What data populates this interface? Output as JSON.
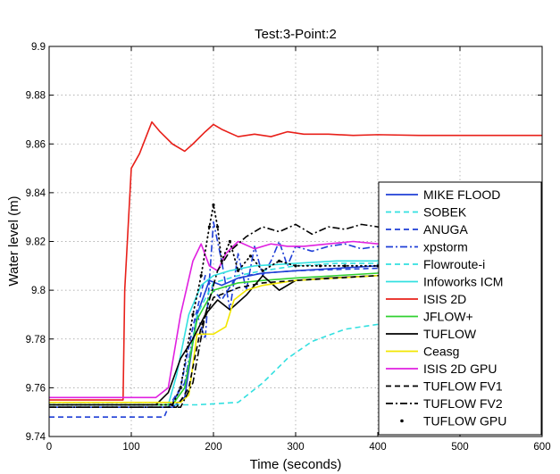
{
  "chart_data": {
    "type": "line",
    "title": "Test:3-Point:2",
    "xlabel": "Time (seconds)",
    "ylabel": "Water level (m)",
    "xlim": [
      0,
      600
    ],
    "ylim": [
      9.74,
      9.9
    ],
    "xticks": [
      "0",
      "100",
      "200",
      "300",
      "400",
      "500",
      "600"
    ],
    "yticks": [
      "9.74",
      "9.76",
      "9.78",
      "9.8",
      "9.82",
      "9.84",
      "9.86",
      "9.88",
      "9.9"
    ],
    "grid": true,
    "legend_position": "lower-right",
    "series": [
      {
        "name": "MIKE FLOOD",
        "color": "#1f3fd6",
        "dash": "solid",
        "x": [
          0,
          150,
          165,
          180,
          195,
          210,
          230,
          260,
          300,
          350,
          400,
          600
        ],
        "y": [
          9.752,
          9.752,
          9.756,
          9.79,
          9.804,
          9.802,
          9.805,
          9.807,
          9.808,
          9.809,
          9.81,
          9.812
        ]
      },
      {
        "name": "SOBEK",
        "color": "#33e0e0",
        "dash": "dash",
        "x": [
          0,
          150,
          180,
          230,
          260,
          290,
          320,
          360,
          400,
          440,
          500,
          600
        ],
        "y": [
          9.753,
          9.753,
          9.753,
          9.754,
          9.762,
          9.772,
          9.779,
          9.784,
          9.786,
          9.789,
          9.791,
          9.794
        ]
      },
      {
        "name": "ANUGA",
        "color": "#1f3fd6",
        "dash": "dash",
        "x": [
          0,
          140,
          145,
          160,
          175,
          190,
          200,
          210,
          225,
          240,
          260,
          300,
          400,
          600
        ],
        "y": [
          9.748,
          9.748,
          9.752,
          9.76,
          9.785,
          9.806,
          9.8,
          9.796,
          9.804,
          9.806,
          9.807,
          9.808,
          9.809,
          9.811
        ]
      },
      {
        "name": "xpstorm",
        "color": "#1f3fd6",
        "dash": "dashdot",
        "x": [
          0,
          150,
          165,
          180,
          190,
          200,
          210,
          220,
          230,
          240,
          250,
          260,
          270,
          280,
          290,
          300,
          320,
          340,
          360,
          380,
          400,
          450,
          500,
          600
        ],
        "y": [
          9.754,
          9.754,
          9.762,
          9.79,
          9.78,
          9.828,
          9.812,
          9.792,
          9.815,
          9.8,
          9.818,
          9.806,
          9.812,
          9.82,
          9.81,
          9.818,
          9.816,
          9.818,
          9.819,
          9.817,
          9.818,
          9.818,
          9.818,
          9.818
        ]
      },
      {
        "name": "Flowroute-i",
        "color": "#33e0e0",
        "dash": "dash",
        "x": [
          0,
          150,
          165,
          180,
          200,
          230,
          260,
          300,
          350,
          400,
          500,
          600
        ],
        "y": [
          9.753,
          9.753,
          9.76,
          9.79,
          9.803,
          9.806,
          9.808,
          9.81,
          9.811,
          9.811,
          9.812,
          9.812
        ]
      },
      {
        "name": "Infoworks ICM",
        "color": "#33e0e0",
        "dash": "solid",
        "x": [
          0,
          145,
          155,
          170,
          185,
          200,
          220,
          250,
          300,
          350,
          400,
          500,
          600
        ],
        "y": [
          9.753,
          9.753,
          9.765,
          9.79,
          9.802,
          9.806,
          9.808,
          9.81,
          9.811,
          9.812,
          9.812,
          9.813,
          9.813
        ]
      },
      {
        "name": "ISIS 2D",
        "color": "#e8201a",
        "dash": "solid",
        "x": [
          0,
          90,
          92,
          100,
          110,
          125,
          135,
          150,
          165,
          175,
          190,
          200,
          210,
          230,
          250,
          270,
          290,
          310,
          340,
          370,
          400,
          450,
          500,
          600
        ],
        "y": [
          9.755,
          9.755,
          9.8,
          9.85,
          9.856,
          9.869,
          9.865,
          9.86,
          9.857,
          9.86,
          9.865,
          9.868,
          9.866,
          9.863,
          9.864,
          9.863,
          9.865,
          9.864,
          9.864,
          9.8635,
          9.8638,
          9.8635,
          9.8635,
          9.8635
        ]
      },
      {
        "name": "JFLOW+",
        "color": "#30d030",
        "dash": "solid",
        "x": [
          0,
          150,
          165,
          180,
          200,
          230,
          260,
          300,
          350,
          400,
          500,
          600
        ],
        "y": [
          9.753,
          9.753,
          9.76,
          9.788,
          9.8,
          9.803,
          9.804,
          9.805,
          9.806,
          9.807,
          9.808,
          9.809
        ]
      },
      {
        "name": "TUFLOW",
        "color": "#000000",
        "dash": "solid",
        "x": [
          0,
          130,
          145,
          160,
          175,
          190,
          205,
          220,
          240,
          260,
          280,
          300,
          340,
          400,
          450,
          500,
          600
        ],
        "y": [
          9.753,
          9.753,
          9.758,
          9.772,
          9.78,
          9.79,
          9.796,
          9.792,
          9.798,
          9.806,
          9.8,
          9.804,
          9.805,
          9.806,
          9.807,
          9.807,
          9.808
        ]
      },
      {
        "name": "Ceasg",
        "color": "#f2e600",
        "dash": "solid",
        "x": [
          0,
          160,
          170,
          180,
          200,
          215,
          225,
          240,
          260,
          300,
          350,
          400,
          500,
          600
        ],
        "y": [
          9.754,
          9.754,
          9.757,
          9.782,
          9.782,
          9.785,
          9.796,
          9.8,
          9.802,
          9.804,
          9.805,
          9.806,
          9.806,
          9.807
        ]
      },
      {
        "name": "ISIS 2D GPU",
        "color": "#e020e0",
        "dash": "solid",
        "x": [
          0,
          130,
          145,
          160,
          175,
          185,
          195,
          205,
          215,
          230,
          250,
          270,
          290,
          310,
          340,
          370,
          400,
          450,
          500,
          600
        ],
        "y": [
          9.756,
          9.756,
          9.76,
          9.79,
          9.812,
          9.819,
          9.81,
          9.808,
          9.815,
          9.82,
          9.817,
          9.819,
          9.818,
          9.818,
          9.819,
          9.82,
          9.819,
          9.819,
          9.82,
          9.82
        ]
      },
      {
        "name": "TUFLOW FV1",
        "color": "#000000",
        "dash": "dash",
        "x": [
          0,
          155,
          170,
          185,
          200,
          230,
          260,
          300,
          350,
          400,
          500,
          600
        ],
        "y": [
          9.752,
          9.752,
          9.76,
          9.785,
          9.797,
          9.801,
          9.803,
          9.804,
          9.805,
          9.806,
          9.806,
          9.807
        ]
      },
      {
        "name": "TUFLOW FV2",
        "color": "#000000",
        "dash": "dashdot",
        "x": [
          0,
          160,
          175,
          190,
          205,
          220,
          240,
          260,
          280,
          300,
          320,
          340,
          360,
          380,
          400,
          450,
          500,
          600
        ],
        "y": [
          9.752,
          9.752,
          9.762,
          9.79,
          9.808,
          9.816,
          9.822,
          9.826,
          9.824,
          9.827,
          9.823,
          9.826,
          9.825,
          9.827,
          9.826,
          9.826,
          9.827,
          9.827
        ]
      },
      {
        "name": "TUFLOW GPU",
        "color": "#000000",
        "dash": "dots",
        "x": [
          0,
          150,
          160,
          175,
          185,
          195,
          200,
          205,
          210,
          220,
          230,
          245,
          260,
          280,
          300,
          330,
          360,
          400,
          450,
          500,
          600
        ],
        "y": [
          9.753,
          9.753,
          9.76,
          9.79,
          9.806,
          9.826,
          9.835,
          9.826,
          9.812,
          9.82,
          9.808,
          9.814,
          9.808,
          9.812,
          9.81,
          9.81,
          9.81,
          9.81,
          9.81,
          9.811,
          9.811
        ]
      }
    ]
  }
}
